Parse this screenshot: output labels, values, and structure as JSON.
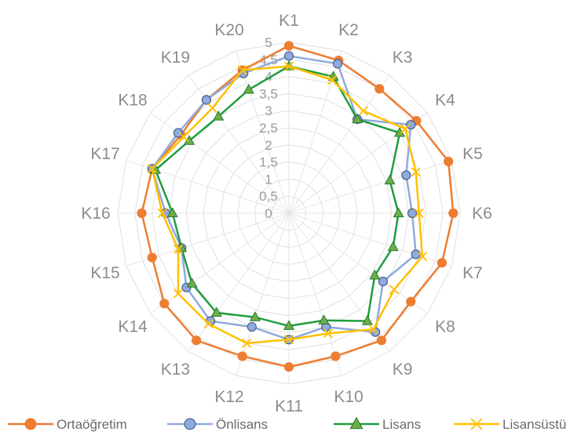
{
  "chart_data": {
    "type": "radar",
    "title": "",
    "categories": [
      "K1",
      "K2",
      "K3",
      "K4",
      "K5",
      "K6",
      "K7",
      "K8",
      "K9",
      "K10",
      "K11",
      "K12",
      "K13",
      "K14",
      "K15",
      "K16",
      "K17",
      "K18",
      "K19",
      "K20"
    ],
    "rlim": [
      0,
      5
    ],
    "ticks": [
      "0",
      "0,5",
      "1",
      "1,5",
      "2",
      "2,5",
      "3",
      "3,5",
      "4",
      "4,5",
      "5"
    ],
    "grid": true,
    "legend": "bottom",
    "series": [
      {
        "name": "Ortaöğretim",
        "color": "#ED7D31",
        "marker": "circle",
        "values": [
          4.9,
          4.7,
          4.5,
          4.6,
          4.9,
          4.8,
          4.7,
          4.4,
          4.6,
          4.4,
          4.5,
          4.4,
          4.6,
          4.5,
          4.2,
          4.3,
          4.2,
          3.9,
          4.1,
          4.4
        ]
      },
      {
        "name": "Önlisans",
        "color": "#8FAADC",
        "marker": "circle",
        "values": [
          4.6,
          4.6,
          3.4,
          4.4,
          3.6,
          3.6,
          3.9,
          3.4,
          4.3,
          3.5,
          3.7,
          3.5,
          3.9,
          3.7,
          3.3,
          3.6,
          4.2,
          4.0,
          4.1,
          4.3
        ]
      },
      {
        "name": "Lisans",
        "color": "#1E9E3E",
        "marker": "triangle",
        "values": [
          4.3,
          4.2,
          3.4,
          4.0,
          3.1,
          3.2,
          3.2,
          3.1,
          3.9,
          3.3,
          3.3,
          3.2,
          3.6,
          3.5,
          3.3,
          3.4,
          4.1,
          3.6,
          3.5,
          3.8
        ]
      },
      {
        "name": "Lisansüstü",
        "color": "#FFC000",
        "marker": "x",
        "values": [
          4.3,
          4.1,
          3.7,
          4.2,
          3.9,
          3.8,
          4.1,
          3.8,
          4.2,
          3.7,
          3.7,
          4.0,
          4.0,
          4.0,
          3.4,
          3.7,
          4.2,
          3.8,
          3.8,
          4.4
        ]
      }
    ]
  }
}
